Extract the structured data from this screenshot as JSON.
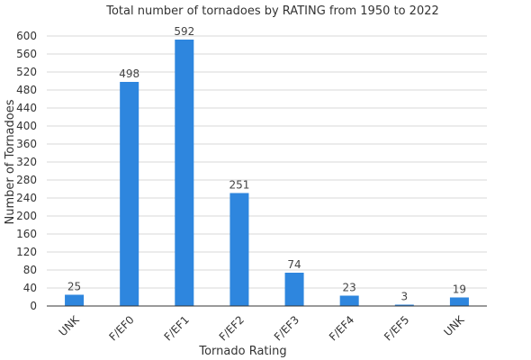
{
  "chart_data": {
    "type": "bar",
    "title": "Total number of tornadoes by RATING from 1950 to 2022",
    "xlabel": "Tornado Rating",
    "ylabel": "Number of Tornadoes",
    "categories": [
      "UNK",
      "F/EF0",
      "F/EF1",
      "F/EF2",
      "F/EF3",
      "F/EF4",
      "F/EF5",
      "UNK"
    ],
    "values": [
      25,
      498,
      592,
      251,
      74,
      23,
      3,
      19
    ],
    "ylim": [
      0,
      600
    ],
    "yticks": [
      0,
      40,
      80,
      120,
      160,
      200,
      240,
      280,
      320,
      360,
      400,
      440,
      480,
      520,
      560,
      600
    ],
    "grid": true,
    "legend": "none",
    "bar_color": "#2e86de"
  }
}
